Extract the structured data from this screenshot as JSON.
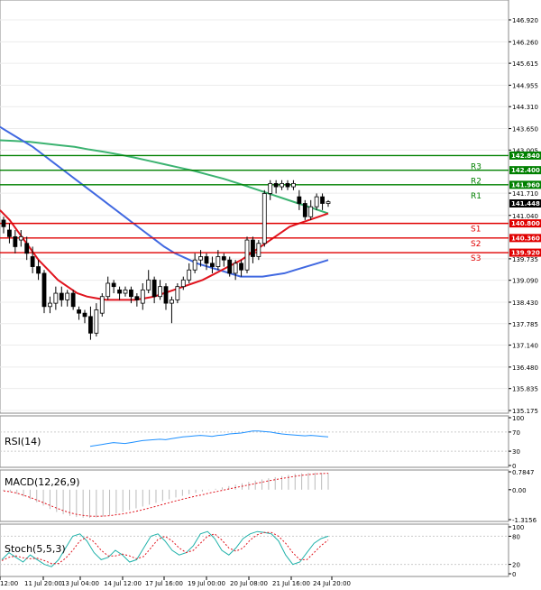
{
  "chart_data": [
    {
      "type": "candlestick",
      "title": "",
      "y_ticks": [
        "146.920",
        "146.260",
        "145.615",
        "144.955",
        "144.310",
        "143.650",
        "143.005",
        "141.710",
        "141.040",
        "139.735",
        "139.090",
        "138.430",
        "137.785",
        "137.140",
        "136.480",
        "135.835",
        "135.175"
      ],
      "ylim": [
        135.175,
        146.92
      ],
      "x_ticks": [
        "12:00",
        "11 Jul 20:00",
        "13 Jul 04:00",
        "14 Jul 12:00",
        "17 Jul 16:00",
        "19 Jul 00:00",
        "20 Jul 08:00",
        "21 Jul 16:00",
        "24 Jul 20:00"
      ],
      "current_price": "141.448",
      "levels": [
        {
          "name": "R3",
          "value": 142.84,
          "label": "142.840",
          "color": "#008000"
        },
        {
          "name": "R2",
          "value": 142.4,
          "label": "142.400",
          "color": "#008000"
        },
        {
          "name": "R1",
          "value": 141.96,
          "label": "141.960",
          "color": "#008000"
        },
        {
          "name": "S1",
          "value": 140.8,
          "label": "140.800",
          "color": "#e00000"
        },
        {
          "name": "S2",
          "value": 140.36,
          "label": "140.360",
          "color": "#e00000"
        },
        {
          "name": "S3",
          "value": 139.92,
          "label": "139.920",
          "color": "#e00000"
        }
      ],
      "candles": [
        [
          140.9,
          140.7,
          141.0,
          140.5
        ],
        [
          140.6,
          140.4,
          140.8,
          140.2
        ],
        [
          140.4,
          140.1,
          140.6,
          139.9
        ],
        [
          140.3,
          140.4,
          140.6,
          140.1
        ],
        [
          140.2,
          139.9,
          140.4,
          139.7
        ],
        [
          139.8,
          139.5,
          140.1,
          139.3
        ],
        [
          139.5,
          139.3,
          139.7,
          139.1
        ],
        [
          139.3,
          138.3,
          139.4,
          138.1
        ],
        [
          138.3,
          138.4,
          138.6,
          138.1
        ],
        [
          138.4,
          138.7,
          138.9,
          138.2
        ],
        [
          138.7,
          138.5,
          138.9,
          138.3
        ],
        [
          138.5,
          138.7,
          138.8,
          138.3
        ],
        [
          138.7,
          138.3,
          138.8,
          138.2
        ],
        [
          138.2,
          138.1,
          138.3,
          137.9
        ],
        [
          138.1,
          138.0,
          138.2,
          137.8
        ],
        [
          138.0,
          137.5,
          138.3,
          137.3
        ],
        [
          137.5,
          138.2,
          138.4,
          137.4
        ],
        [
          138.1,
          138.6,
          138.7,
          138.0
        ],
        [
          138.6,
          139.0,
          139.2,
          138.5
        ],
        [
          139.0,
          138.9,
          139.1,
          138.7
        ],
        [
          138.8,
          138.7,
          138.9,
          138.5
        ],
        [
          138.7,
          138.8,
          138.9,
          138.6
        ],
        [
          138.8,
          138.6,
          138.9,
          138.4
        ],
        [
          138.6,
          138.5,
          138.7,
          138.3
        ],
        [
          138.4,
          138.8,
          139.0,
          138.2
        ],
        [
          138.8,
          139.1,
          139.4,
          138.7
        ],
        [
          139.1,
          138.6,
          139.2,
          138.4
        ],
        [
          138.6,
          138.9,
          139.1,
          138.5
        ],
        [
          138.9,
          138.4,
          139.0,
          138.2
        ],
        [
          138.4,
          138.5,
          138.6,
          137.8
        ],
        [
          138.5,
          138.9,
          139.0,
          138.4
        ],
        [
          138.9,
          139.1,
          139.2,
          138.8
        ],
        [
          139.1,
          139.4,
          139.6,
          139.0
        ],
        [
          139.4,
          139.7,
          139.9,
          139.3
        ],
        [
          139.7,
          139.8,
          140.0,
          139.5
        ],
        [
          139.8,
          139.6,
          139.9,
          139.4
        ],
        [
          139.6,
          139.5,
          139.8,
          139.3
        ],
        [
          139.5,
          139.8,
          140.0,
          139.4
        ],
        [
          139.8,
          139.7,
          139.9,
          139.5
        ],
        [
          139.7,
          139.3,
          139.8,
          139.2
        ],
        [
          139.3,
          139.6,
          139.7,
          139.1
        ],
        [
          139.6,
          139.4,
          139.7,
          139.2
        ],
        [
          139.4,
          140.3,
          140.4,
          139.3
        ],
        [
          140.3,
          139.8,
          140.4,
          139.6
        ],
        [
          139.8,
          140.2,
          140.3,
          139.7
        ],
        [
          140.2,
          141.7,
          141.8,
          140.1
        ],
        [
          141.7,
          142.0,
          142.1,
          141.5
        ],
        [
          142.0,
          141.9,
          142.1,
          141.7
        ],
        [
          141.9,
          142.0,
          142.1,
          141.8
        ],
        [
          142.0,
          141.9,
          142.1,
          141.8
        ],
        [
          141.9,
          142.0,
          142.1,
          141.8
        ],
        [
          141.6,
          141.4,
          141.8,
          141.2
        ],
        [
          141.4,
          141.0,
          141.5,
          140.9
        ],
        [
          141.0,
          141.3,
          141.5,
          140.9
        ],
        [
          141.3,
          141.6,
          141.7,
          141.2
        ],
        [
          141.6,
          141.4,
          141.7,
          141.2
        ],
        [
          141.4,
          141.45,
          141.5,
          141.3
        ]
      ],
      "ma_fast": [
        141.2,
        140.9,
        140.5,
        140.1,
        139.7,
        139.4,
        139.1,
        138.9,
        138.7,
        138.6,
        138.55,
        138.5,
        138.5,
        138.5,
        138.5,
        138.55,
        138.6,
        138.7,
        138.8,
        138.9,
        139.0,
        139.1,
        139.25,
        139.4,
        139.55,
        139.7,
        139.9,
        140.1,
        140.3,
        140.5,
        140.7,
        140.8,
        140.9,
        141.0,
        141.1
      ],
      "ma_mid": [
        143.7,
        143.5,
        143.3,
        143.1,
        142.85,
        142.6,
        142.35,
        142.1,
        141.85,
        141.6,
        141.35,
        141.1,
        140.85,
        140.6,
        140.35,
        140.1,
        139.9,
        139.75,
        139.6,
        139.5,
        139.4,
        139.3,
        139.2,
        139.2,
        139.2,
        139.25,
        139.3,
        139.4,
        139.5,
        139.6,
        139.7
      ],
      "ma_slow": [
        143.3,
        143.28,
        143.25,
        143.2,
        143.15,
        143.1,
        143.02,
        142.95,
        142.87,
        142.78,
        142.68,
        142.58,
        142.48,
        142.38,
        142.26,
        142.14,
        142.0,
        141.85,
        141.7,
        141.55,
        141.4,
        141.25,
        141.1
      ],
      "ylabel": "",
      "xlabel": ""
    },
    {
      "type": "line",
      "title": "RSI(14)",
      "y_ticks": [
        "100",
        "70",
        "30",
        "0"
      ],
      "ylim": [
        0,
        100
      ],
      "values": [
        40,
        42,
        44,
        46,
        48,
        47,
        46,
        48,
        50,
        52,
        53,
        54,
        55,
        54,
        56,
        58,
        60,
        61,
        62,
        63,
        62,
        61,
        63,
        64,
        66,
        67,
        68,
        70,
        72,
        72,
        71,
        70,
        68,
        66,
        65,
        64,
        63,
        62,
        63,
        62,
        61,
        60
      ]
    },
    {
      "type": "bar",
      "title": "MACD(12,26,9)",
      "y_ticks": [
        "0.7847",
        "0.00",
        "-1.3156"
      ],
      "ylim": [
        -1.3156,
        0.7847
      ],
      "values": [
        -0.05,
        -0.1,
        -0.18,
        -0.3,
        -0.42,
        -0.55,
        -0.7,
        -0.85,
        -0.98,
        -1.08,
        -1.15,
        -1.2,
        -1.23,
        -1.24,
        -1.22,
        -1.18,
        -1.12,
        -1.05,
        -0.98,
        -0.9,
        -0.82,
        -0.74,
        -0.66,
        -0.58,
        -0.5,
        -0.42,
        -0.34,
        -0.27,
        -0.2,
        -0.14,
        -0.08,
        -0.02,
        0.04,
        0.1,
        0.16,
        0.22,
        0.28,
        0.34,
        0.4,
        0.45,
        0.5,
        0.55,
        0.6,
        0.65,
        0.7,
        0.72,
        0.74,
        0.75,
        0.74,
        0.73
      ],
      "signal": [
        -0.05,
        -0.09,
        -0.15,
        -0.24,
        -0.34,
        -0.45,
        -0.57,
        -0.69,
        -0.81,
        -0.92,
        -1.01,
        -1.08,
        -1.13,
        -1.16,
        -1.17,
        -1.16,
        -1.14,
        -1.1,
        -1.06,
        -1.01,
        -0.95,
        -0.88,
        -0.81,
        -0.73,
        -0.65,
        -0.57,
        -0.49,
        -0.42,
        -0.35,
        -0.28,
        -0.22,
        -0.15,
        -0.09,
        -0.03,
        0.03,
        0.09,
        0.15,
        0.21,
        0.27,
        0.33,
        0.39,
        0.44,
        0.49,
        0.54,
        0.59,
        0.63,
        0.66,
        0.69,
        0.71,
        0.72
      ]
    },
    {
      "type": "line",
      "title": "Stoch(5,5,3)",
      "y_ticks": [
        "100",
        "80",
        "20",
        "0"
      ],
      "ylim": [
        0,
        100
      ],
      "k": [
        30,
        45,
        35,
        25,
        40,
        30,
        20,
        15,
        30,
        55,
        80,
        85,
        70,
        45,
        30,
        35,
        50,
        40,
        25,
        30,
        55,
        80,
        85,
        70,
        50,
        40,
        45,
        60,
        85,
        90,
        75,
        50,
        40,
        55,
        75,
        85,
        90,
        88,
        85,
        70,
        40,
        20,
        25,
        45,
        65,
        75,
        80
      ],
      "d": [
        28,
        35,
        38,
        34,
        32,
        33,
        28,
        22,
        22,
        33,
        50,
        70,
        78,
        68,
        50,
        38,
        38,
        42,
        38,
        32,
        37,
        55,
        73,
        80,
        70,
        55,
        45,
        50,
        65,
        80,
        85,
        72,
        55,
        48,
        55,
        72,
        83,
        88,
        88,
        80,
        65,
        45,
        30,
        30,
        45,
        60,
        72
      ]
    }
  ]
}
